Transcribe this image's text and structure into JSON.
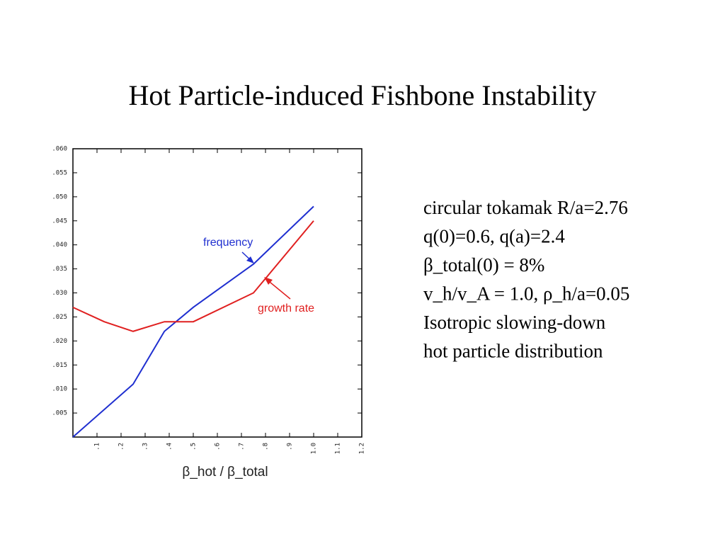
{
  "title": "Hot Particle-induced Fishbone Instability",
  "notes": [
    "circular tokamak R/a=2.76",
    "q(0)=0.6, q(a)=2.4",
    "β_total(0) = 8%",
    "v_h/v_A = 1.0, ρ_h/a=0.05",
    "Isotropic slowing-down",
    "hot particle distribution"
  ],
  "chart_data": {
    "type": "line",
    "x_label": "β_hot / β_total",
    "annotations": [
      "frequency",
      "growth rate"
    ],
    "series": [
      {
        "name": "frequency",
        "color": "#1f2fd0",
        "x": [
          0,
          0.25,
          0.38,
          0.5,
          0.75,
          1.0
        ],
        "values": [
          0,
          0.011,
          0.022,
          0.027,
          0.036,
          0.048
        ]
      },
      {
        "name": "growth rate",
        "color": "#e02020",
        "x": [
          0,
          0.13,
          0.25,
          0.38,
          0.5,
          0.75,
          1.0
        ],
        "values": [
          0.027,
          0.024,
          0.022,
          0.024,
          0.024,
          0.03,
          0.045
        ]
      }
    ],
    "xlim": [
      0,
      1.2
    ],
    "xticks": [
      {
        "value": 0.1,
        "label": ".1"
      },
      {
        "value": 0.2,
        "label": ".2"
      },
      {
        "value": 0.3,
        "label": ".3"
      },
      {
        "value": 0.4,
        "label": ".4"
      },
      {
        "value": 0.5,
        "label": ".5"
      },
      {
        "value": 0.6,
        "label": ".6"
      },
      {
        "value": 0.7,
        "label": ".7"
      },
      {
        "value": 0.8,
        "label": ".8"
      },
      {
        "value": 0.9,
        "label": ".9"
      },
      {
        "value": 1.0,
        "label": "1.0"
      },
      {
        "value": 1.1,
        "label": "1.1"
      },
      {
        "value": 1.2,
        "label": "1.2"
      }
    ],
    "ylim": [
      0,
      0.06
    ],
    "yticks": [
      {
        "value": 0.005,
        "label": ".005"
      },
      {
        "value": 0.01,
        "label": ".010"
      },
      {
        "value": 0.015,
        "label": ".015"
      },
      {
        "value": 0.02,
        "label": ".020"
      },
      {
        "value": 0.025,
        "label": ".025"
      },
      {
        "value": 0.03,
        "label": ".030"
      },
      {
        "value": 0.035,
        "label": ".035"
      },
      {
        "value": 0.04,
        "label": ".040"
      },
      {
        "value": 0.045,
        "label": ".045"
      },
      {
        "value": 0.05,
        "label": ".050"
      },
      {
        "value": 0.055,
        "label": ".055"
      },
      {
        "value": 0.06,
        "label": ".060"
      }
    ]
  }
}
